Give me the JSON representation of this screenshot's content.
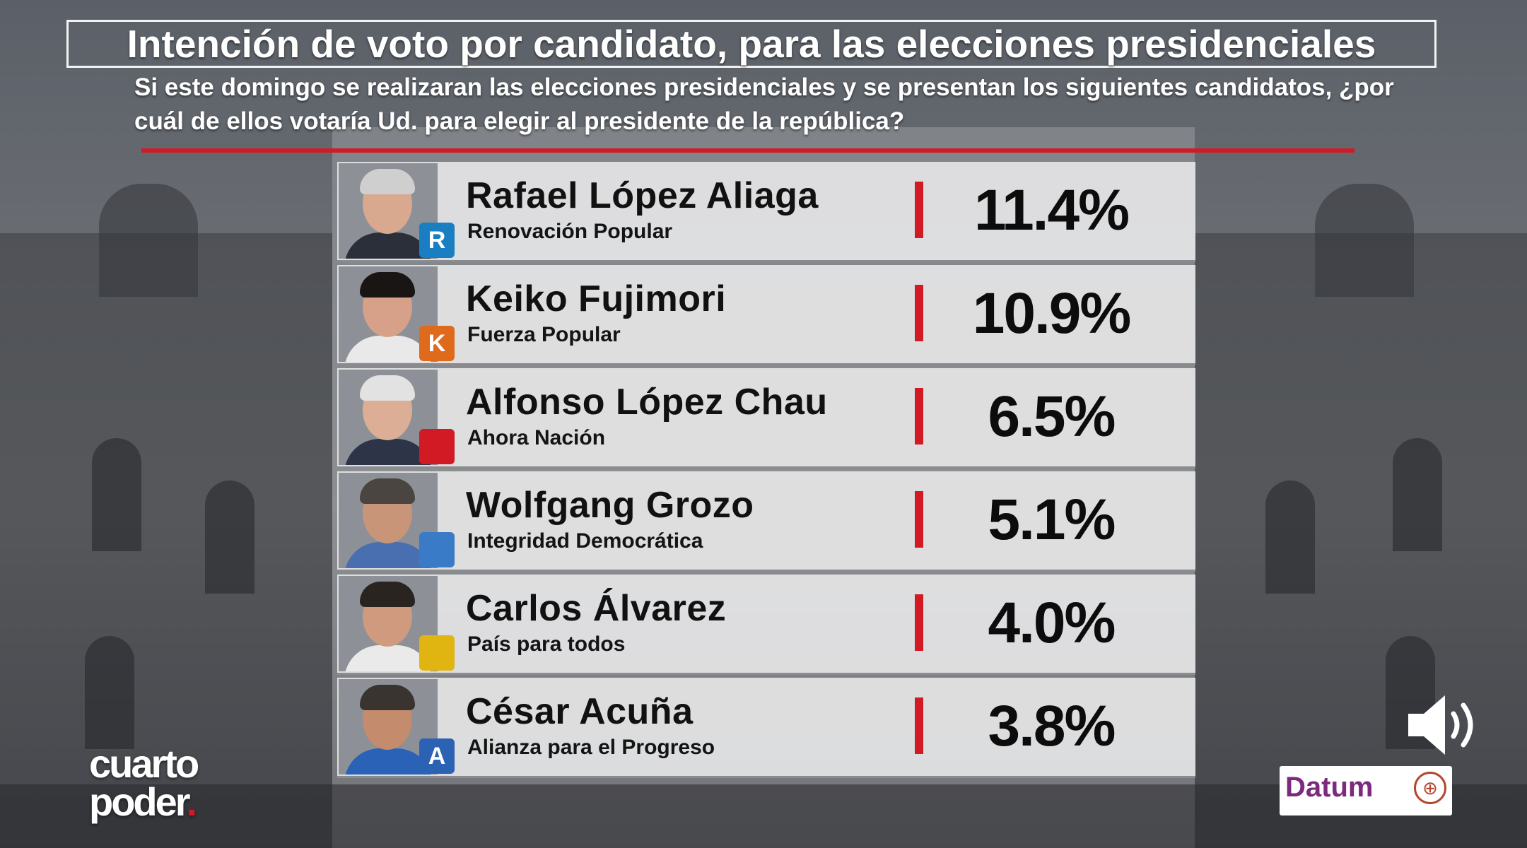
{
  "chart_data": {
    "type": "bar",
    "title": "Intención de voto por candidato, para las elecciones presidenciales",
    "subtitle": "Si este domingo se realizaran las elecciones presidenciales y se presentan los siguientes candidatos, ¿por cuál de ellos votaría Ud. para elegir al presidente de la república?",
    "categories": [
      "Rafael López Aliaga",
      "Keiko Fujimori",
      "Alfonso López Chau",
      "Wolfgang Grozo",
      "Carlos Álvarez",
      "César Acuña"
    ],
    "values": [
      11.4,
      10.9,
      6.5,
      5.1,
      4.0,
      3.8
    ],
    "value_labels": [
      "11.4%",
      "10.9%",
      "6.5%",
      "5.1%",
      "4.0%",
      "3.8%"
    ],
    "parties": [
      "Renovación Popular",
      "Fuerza Popular",
      "Ahora Nación",
      "Integridad Democrática",
      "País para todos",
      "Alianza para el Progreso"
    ],
    "party_logos": [
      "R",
      "K",
      "",
      "",
      "",
      "A"
    ],
    "logo_colors": [
      "#1a7fc2",
      "#e06a1c",
      "#d11a24",
      "#3a7bc8",
      "#e0b511",
      "#2c62b4"
    ],
    "bar_color": "#d11a24"
  },
  "branding": {
    "channel_line1": "cuarto",
    "channel_line2": "poder",
    "source": "Datum"
  },
  "icons": [
    "speaker-icon",
    "globe-icon"
  ]
}
